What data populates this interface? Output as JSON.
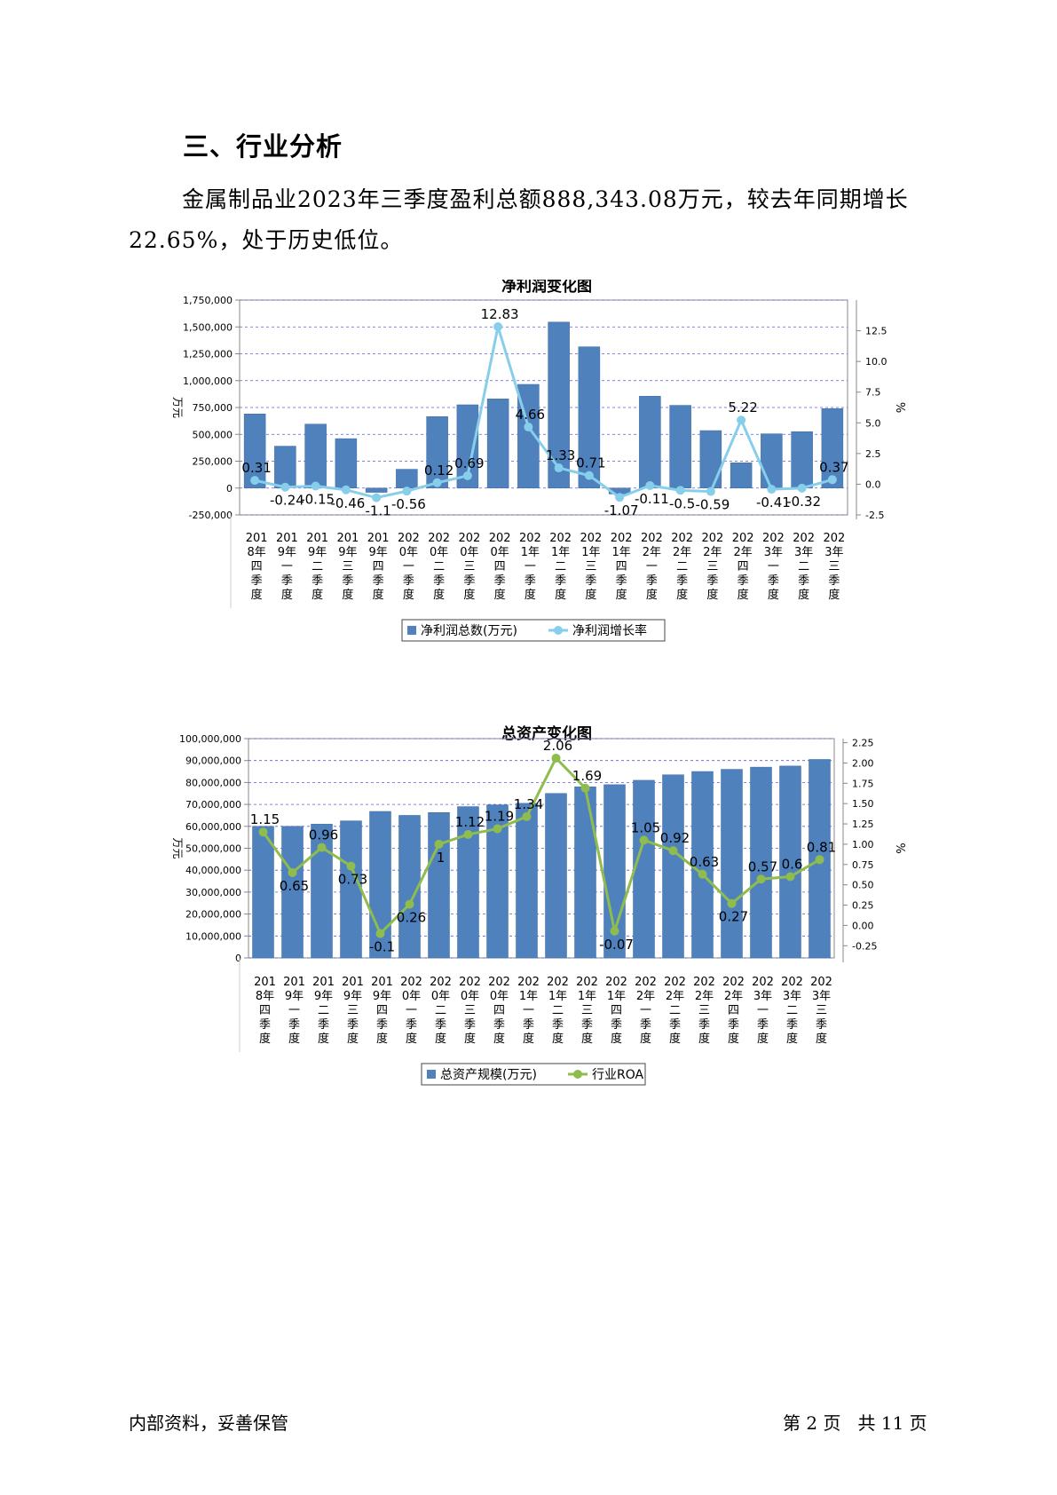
{
  "heading": "三、行业分析",
  "paragraph": "金属制品业2023年三季度盈利总额888,343.08万元，较去年同期增长22.65%，处于历史低位。",
  "footer": {
    "left": "内部资料，妥善保管",
    "right": "第 2 页   共 11 页"
  },
  "colors": {
    "bar": "#4f81bd",
    "line1": "#87ceeb",
    "line2": "#8fbc4f",
    "grid": "#5b5bd6"
  },
  "chart_data": [
    {
      "type": "bar",
      "title": "净利润变化图",
      "ylabel": "万元",
      "y2label": "%",
      "categories": [
        "2018年四季度",
        "2019年一季度",
        "2019年二季度",
        "2019年三季度",
        "2019年四季度",
        "2020年一季度",
        "2020年二季度",
        "2020年三季度",
        "2020年四季度",
        "2021年一季度",
        "2021年二季度",
        "2021年三季度",
        "2021年四季度",
        "2022年一季度",
        "2022年二季度",
        "2022年三季度",
        "2022年四季度",
        "2023年一季度",
        "2023年二季度",
        "2023年三季度"
      ],
      "ylim": [
        -250000,
        1750000
      ],
      "yticks": [
        "1,750,000",
        "1,500,000",
        "1,250,000",
        "1,000,000",
        "750,000",
        "500,000",
        "250,000",
        "0",
        "-250,000"
      ],
      "y2lim": [
        -2.5,
        15
      ],
      "y2ticks": [
        "12.5",
        "10.0",
        "7.5",
        "5.0",
        "2.5",
        "0.0",
        "-2.5"
      ],
      "series": [
        {
          "name": "净利润总数(万元)",
          "kind": "bar",
          "values": [
            690000,
            390000,
            595000,
            460000,
            -40000,
            175000,
            665000,
            775000,
            830000,
            965000,
            1545000,
            1315000,
            -55000,
            855000,
            770000,
            535000,
            235000,
            505000,
            525000,
            740000
          ]
        },
        {
          "name": "净利润增长率",
          "kind": "line",
          "values": [
            0.31,
            -0.24,
            -0.15,
            -0.46,
            -1.1,
            -0.56,
            0.12,
            0.69,
            12.83,
            4.66,
            1.33,
            0.71,
            -1.07,
            -0.11,
            -0.5,
            -0.59,
            5.22,
            -0.41,
            -0.32,
            0.37
          ],
          "labels": [
            "0.31",
            "-0.24",
            "-0.15",
            "-0.46",
            "-1.1",
            "-0.56",
            "0.12",
            "0.69",
            "12.83",
            "4.66",
            "1.33",
            "0.71",
            "-1.07",
            "-0.11",
            "-0.5",
            "-0.59",
            "5.22",
            "-0.41",
            "-0.32",
            "0.37"
          ]
        }
      ],
      "legend": "bottom"
    },
    {
      "type": "bar",
      "title": "总资产变化图",
      "ylabel": "万元",
      "y2label": "%",
      "categories": [
        "2018年四季度",
        "2019年一季度",
        "2019年二季度",
        "2019年三季度",
        "2019年四季度",
        "2020年一季度",
        "2020年二季度",
        "2020年三季度",
        "2020年四季度",
        "2021年一季度",
        "2021年二季度",
        "2021年三季度",
        "2021年四季度",
        "2022年一季度",
        "2022年二季度",
        "2022年三季度",
        "2022年四季度",
        "2023年一季度",
        "2023年二季度",
        "2023年三季度"
      ],
      "ylim": [
        0,
        100000000
      ],
      "yticks": [
        "100,000,000",
        "90,000,000",
        "80,000,000",
        "70,000,000",
        "60,000,000",
        "50,000,000",
        "40,000,000",
        "30,000,000",
        "20,000,000",
        "10,000,000",
        "0"
      ],
      "y2lim": [
        -0.4,
        2.3
      ],
      "y2ticks": [
        "2.25",
        "2.00",
        "1.75",
        "1.50",
        "1.25",
        "1.00",
        "0.75",
        "0.50",
        "0.25",
        "0.00",
        "-0.25"
      ],
      "series": [
        {
          "name": "总资产规模(万元)",
          "kind": "bar",
          "values": [
            60000000,
            60000000,
            61000000,
            62500000,
            66800000,
            65000000,
            66300000,
            69000000,
            69800000,
            70500000,
            75000000,
            78000000,
            79000000,
            81000000,
            83500000,
            85000000,
            86000000,
            87000000,
            87500000,
            90500000
          ]
        },
        {
          "name": "行业ROA",
          "kind": "line",
          "values": [
            1.15,
            0.65,
            0.96,
            0.73,
            -0.1,
            0.26,
            1.0,
            1.12,
            1.19,
            1.34,
            2.06,
            1.69,
            -0.07,
            1.05,
            0.92,
            0.63,
            0.27,
            0.57,
            0.6,
            0.81
          ],
          "labels": [
            "1.15",
            "0.65",
            "0.96",
            "0.73",
            "-0.1",
            "0.26",
            "1",
            "1.12",
            "1.19",
            "1.34",
            "2.06",
            "1.69",
            "-0.07",
            "1.05",
            "0.92",
            "0.63",
            "0.27",
            "0.57",
            "0.6",
            "0.81"
          ]
        }
      ],
      "legend": "bottom"
    }
  ]
}
